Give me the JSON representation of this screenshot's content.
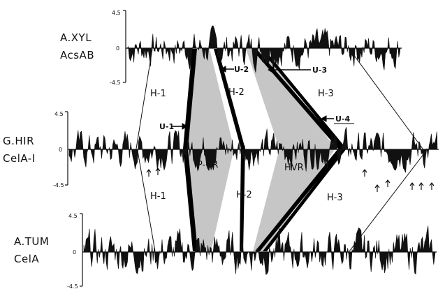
{
  "profiles": [
    {
      "name_line1": "A.XYL",
      "name_line2": "AcsAB",
      "tick_top": "4.5",
      "tick_mid": "0",
      "tick_bottom": "-4.5"
    },
    {
      "name_line1": "G.HIR",
      "name_line2": "CelA-I",
      "tick_top": "4.5",
      "tick_mid": "0",
      "tick_bottom": "-4.5"
    },
    {
      "name_line1": "A.TUM",
      "name_line2": "CelA",
      "tick_top": "4.5",
      "tick_mid": "0",
      "tick_bottom": "-4.5"
    }
  ],
  "regions_upper": {
    "h1": "H-1",
    "h2": "H-2",
    "h3": "H-3"
  },
  "regions_lower": {
    "h1": "H-1",
    "h2": "H-2",
    "h3": "H-3"
  },
  "domains": {
    "pcr": "P-CR",
    "hvr": "HVR"
  },
  "annotations": {
    "u1": "U-1",
    "u2": "U-2",
    "u3": "U-3",
    "u4": "U-4"
  },
  "colors": {
    "trace": "#111111",
    "shade": "#c4c4c4",
    "band": "#000000"
  }
}
